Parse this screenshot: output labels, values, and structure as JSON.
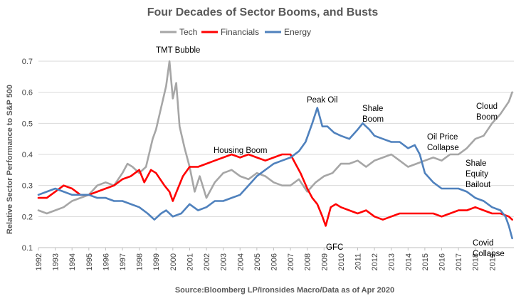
{
  "chart_data": {
    "type": "line",
    "title": "Four Decades of Sector Booms, and Busts",
    "xlabel": "",
    "ylabel": "Relative Sector Performance to S&P 500",
    "source": "Source:Bloomberg LP/Ironsides Macro/Data as of Apr 2020",
    "xlim": [
      1992,
      2020.3
    ],
    "ylim": [
      0.1,
      0.7
    ],
    "y_ticks": [
      "0.1",
      "0.2",
      "0.3",
      "0.4",
      "0.5",
      "0.6",
      "0.7"
    ],
    "x_ticks": [
      "1992",
      "1993",
      "1994",
      "1995",
      "1996",
      "1997",
      "1998",
      "1999",
      "2000",
      "2001",
      "2002",
      "2003",
      "2004",
      "2005",
      "2006",
      "2007",
      "2008",
      "2009",
      "2010",
      "2011",
      "2012",
      "2013",
      "2014",
      "2015",
      "2016",
      "2017",
      "2018",
      "2019"
    ],
    "legend": [
      "Tech",
      "Financials",
      "Energy"
    ],
    "series": [
      {
        "name": "Tech",
        "color": "#a6a6a6",
        "x": [
          1992,
          1992.5,
          1993,
          1993.5,
          1994,
          1994.5,
          1995,
          1995.5,
          1996,
          1996.5,
          1997,
          1997.3,
          1997.6,
          1998,
          1998.4,
          1998.8,
          1999,
          1999.3,
          1999.6,
          1999.8,
          2000,
          2000.2,
          2000.4,
          2000.7,
          2001,
          2001.3,
          2001.6,
          2002,
          2002.5,
          2003,
          2003.5,
          2004,
          2004.5,
          2005,
          2005.5,
          2006,
          2006.5,
          2007,
          2007.5,
          2008,
          2008.5,
          2009,
          2009.5,
          2010,
          2010.5,
          2011,
          2011.5,
          2012,
          2012.5,
          2013,
          2013.5,
          2014,
          2014.5,
          2015,
          2015.5,
          2016,
          2016.5,
          2017,
          2017.5,
          2018,
          2018.5,
          2019,
          2019.5,
          2020,
          2020.2
        ],
        "values": [
          0.22,
          0.21,
          0.22,
          0.23,
          0.25,
          0.26,
          0.27,
          0.3,
          0.31,
          0.3,
          0.34,
          0.37,
          0.36,
          0.34,
          0.36,
          0.45,
          0.48,
          0.55,
          0.62,
          0.7,
          0.58,
          0.63,
          0.49,
          0.42,
          0.36,
          0.28,
          0.33,
          0.26,
          0.31,
          0.34,
          0.35,
          0.33,
          0.32,
          0.34,
          0.33,
          0.31,
          0.3,
          0.3,
          0.32,
          0.28,
          0.31,
          0.33,
          0.34,
          0.37,
          0.37,
          0.38,
          0.36,
          0.38,
          0.39,
          0.4,
          0.38,
          0.36,
          0.37,
          0.38,
          0.39,
          0.38,
          0.4,
          0.4,
          0.42,
          0.45,
          0.46,
          0.5,
          0.53,
          0.57,
          0.6
        ]
      },
      {
        "name": "Financials",
        "color": "#ff0000",
        "x": [
          1992,
          1992.5,
          1993,
          1993.5,
          1994,
          1994.5,
          1995,
          1995.5,
          1996,
          1996.5,
          1997,
          1997.5,
          1998,
          1998.3,
          1998.7,
          1999,
          1999.5,
          1999.8,
          2000,
          2000.3,
          2000.6,
          2001,
          2001.5,
          2002,
          2002.5,
          2003,
          2003.5,
          2004,
          2004.5,
          2005,
          2005.5,
          2006,
          2006.5,
          2007,
          2007.3,
          2007.6,
          2008,
          2008.3,
          2008.6,
          2008.9,
          2009.1,
          2009.4,
          2009.7,
          2010,
          2010.5,
          2011,
          2011.5,
          2012,
          2012.5,
          2013,
          2013.5,
          2014,
          2014.5,
          2015,
          2015.5,
          2016,
          2016.5,
          2017,
          2017.5,
          2018,
          2018.5,
          2019,
          2019.5,
          2020,
          2020.2
        ],
        "values": [
          0.26,
          0.26,
          0.28,
          0.3,
          0.29,
          0.27,
          0.27,
          0.28,
          0.29,
          0.3,
          0.32,
          0.33,
          0.35,
          0.31,
          0.35,
          0.34,
          0.3,
          0.28,
          0.25,
          0.29,
          0.33,
          0.36,
          0.36,
          0.37,
          0.38,
          0.39,
          0.4,
          0.39,
          0.4,
          0.39,
          0.38,
          0.39,
          0.4,
          0.4,
          0.37,
          0.34,
          0.29,
          0.26,
          0.24,
          0.2,
          0.17,
          0.23,
          0.24,
          0.23,
          0.22,
          0.21,
          0.22,
          0.2,
          0.19,
          0.2,
          0.21,
          0.21,
          0.21,
          0.21,
          0.21,
          0.2,
          0.21,
          0.22,
          0.22,
          0.23,
          0.22,
          0.21,
          0.21,
          0.2,
          0.19
        ]
      },
      {
        "name": "Energy",
        "color": "#4f81bd",
        "x": [
          1992,
          1992.5,
          1993,
          1993.5,
          1994,
          1994.5,
          1995,
          1995.5,
          1996,
          1996.5,
          1997,
          1997.5,
          1998,
          1998.5,
          1998.9,
          1999.3,
          1999.6,
          2000,
          2000.5,
          2001,
          2001.5,
          2002,
          2002.5,
          2003,
          2003.5,
          2004,
          2004.5,
          2005,
          2005.5,
          2006,
          2006.5,
          2007,
          2007.5,
          2007.9,
          2008.3,
          2008.6,
          2008.9,
          2009.2,
          2009.6,
          2010,
          2010.5,
          2011,
          2011.3,
          2011.7,
          2012,
          2012.5,
          2013,
          2013.5,
          2014,
          2014.4,
          2014.7,
          2015,
          2015.5,
          2016,
          2016.5,
          2017,
          2017.5,
          2018,
          2018.5,
          2019,
          2019.5,
          2019.8,
          2020,
          2020.2
        ],
        "values": [
          0.27,
          0.28,
          0.29,
          0.28,
          0.27,
          0.27,
          0.27,
          0.26,
          0.26,
          0.25,
          0.25,
          0.24,
          0.23,
          0.21,
          0.19,
          0.21,
          0.22,
          0.2,
          0.21,
          0.24,
          0.22,
          0.23,
          0.25,
          0.25,
          0.26,
          0.27,
          0.3,
          0.33,
          0.35,
          0.37,
          0.38,
          0.39,
          0.41,
          0.44,
          0.5,
          0.55,
          0.49,
          0.49,
          0.47,
          0.46,
          0.45,
          0.48,
          0.5,
          0.48,
          0.46,
          0.45,
          0.44,
          0.44,
          0.42,
          0.43,
          0.4,
          0.34,
          0.31,
          0.29,
          0.29,
          0.29,
          0.28,
          0.26,
          0.25,
          0.23,
          0.22,
          0.2,
          0.17,
          0.13
        ]
      }
    ],
    "annotations": [
      {
        "label": "tmt",
        "lines": [
          "TMT Bubble"
        ]
      },
      {
        "label": "housing",
        "lines": [
          "Housing Boom"
        ]
      },
      {
        "label": "peakoil",
        "lines": [
          "Peak Oil"
        ]
      },
      {
        "label": "shale",
        "lines": [
          "Shale",
          "Boom"
        ]
      },
      {
        "label": "oilprice",
        "lines": [
          "Oil Price",
          "Collapse"
        ]
      },
      {
        "label": "cloud",
        "lines": [
          "Cloud",
          "Boom"
        ]
      },
      {
        "label": "bailout",
        "lines": [
          "Shale",
          "Equity",
          "Bailout"
        ]
      },
      {
        "label": "gfc",
        "lines": [
          "GFC"
        ]
      },
      {
        "label": "covid",
        "lines": [
          "Covid",
          "Collapse"
        ]
      }
    ]
  }
}
